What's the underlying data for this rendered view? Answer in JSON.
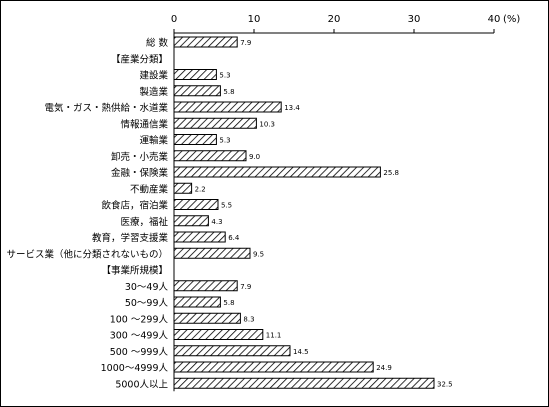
{
  "chart_data": {
    "type": "bar",
    "orientation": "horizontal",
    "unit": "(%)",
    "x_ticks": [
      "0",
      "10",
      "20",
      "30",
      "40"
    ],
    "xlim": [
      0,
      40
    ],
    "grid": false,
    "legend": "none",
    "bar_pattern": "diagonal-hatch",
    "rows": [
      {
        "label": "総 数",
        "value": 7.9,
        "value_label": "7.9"
      },
      {
        "label": "【産業分類】",
        "value": null,
        "value_label": ""
      },
      {
        "label": "建設業",
        "value": 5.3,
        "value_label": "5.3"
      },
      {
        "label": "製造業",
        "value": 5.8,
        "value_label": "5.8"
      },
      {
        "label": "電気・ガス・熱供給・水道業",
        "value": 13.4,
        "value_label": "13.4"
      },
      {
        "label": "情報通信業",
        "value": 10.3,
        "value_label": "10.3"
      },
      {
        "label": "運輸業",
        "value": 5.3,
        "value_label": "5.3"
      },
      {
        "label": "卸売・小売業",
        "value": 9.0,
        "value_label": "9.0"
      },
      {
        "label": "金融・保険業",
        "value": 25.8,
        "value_label": "25.8"
      },
      {
        "label": "不動産業",
        "value": 2.2,
        "value_label": "2.2"
      },
      {
        "label": "飲食店，宿泊業",
        "value": 5.5,
        "value_label": "5.5"
      },
      {
        "label": "医療，福祉",
        "value": 4.3,
        "value_label": "4.3"
      },
      {
        "label": "教育，学習支援業",
        "value": 6.4,
        "value_label": "6.4"
      },
      {
        "label": "サービス業（他に分類されないもの）",
        "value": 9.5,
        "value_label": "9.5"
      },
      {
        "label": "【事業所規模】",
        "value": null,
        "value_label": ""
      },
      {
        "label": "30～49人",
        "value": 7.9,
        "value_label": "7.9"
      },
      {
        "label": "50～99人",
        "value": 5.8,
        "value_label": "5.8"
      },
      {
        "label": "100 ～299人",
        "value": 8.3,
        "value_label": "8.3"
      },
      {
        "label": "300 ～499人",
        "value": 11.1,
        "value_label": "11.1"
      },
      {
        "label": "500 ～999人",
        "value": 14.5,
        "value_label": "14.5"
      },
      {
        "label": "1000～4999人",
        "value": 24.9,
        "value_label": "24.9"
      },
      {
        "label": "5000人以上",
        "value": 32.5,
        "value_label": "32.5"
      }
    ]
  }
}
